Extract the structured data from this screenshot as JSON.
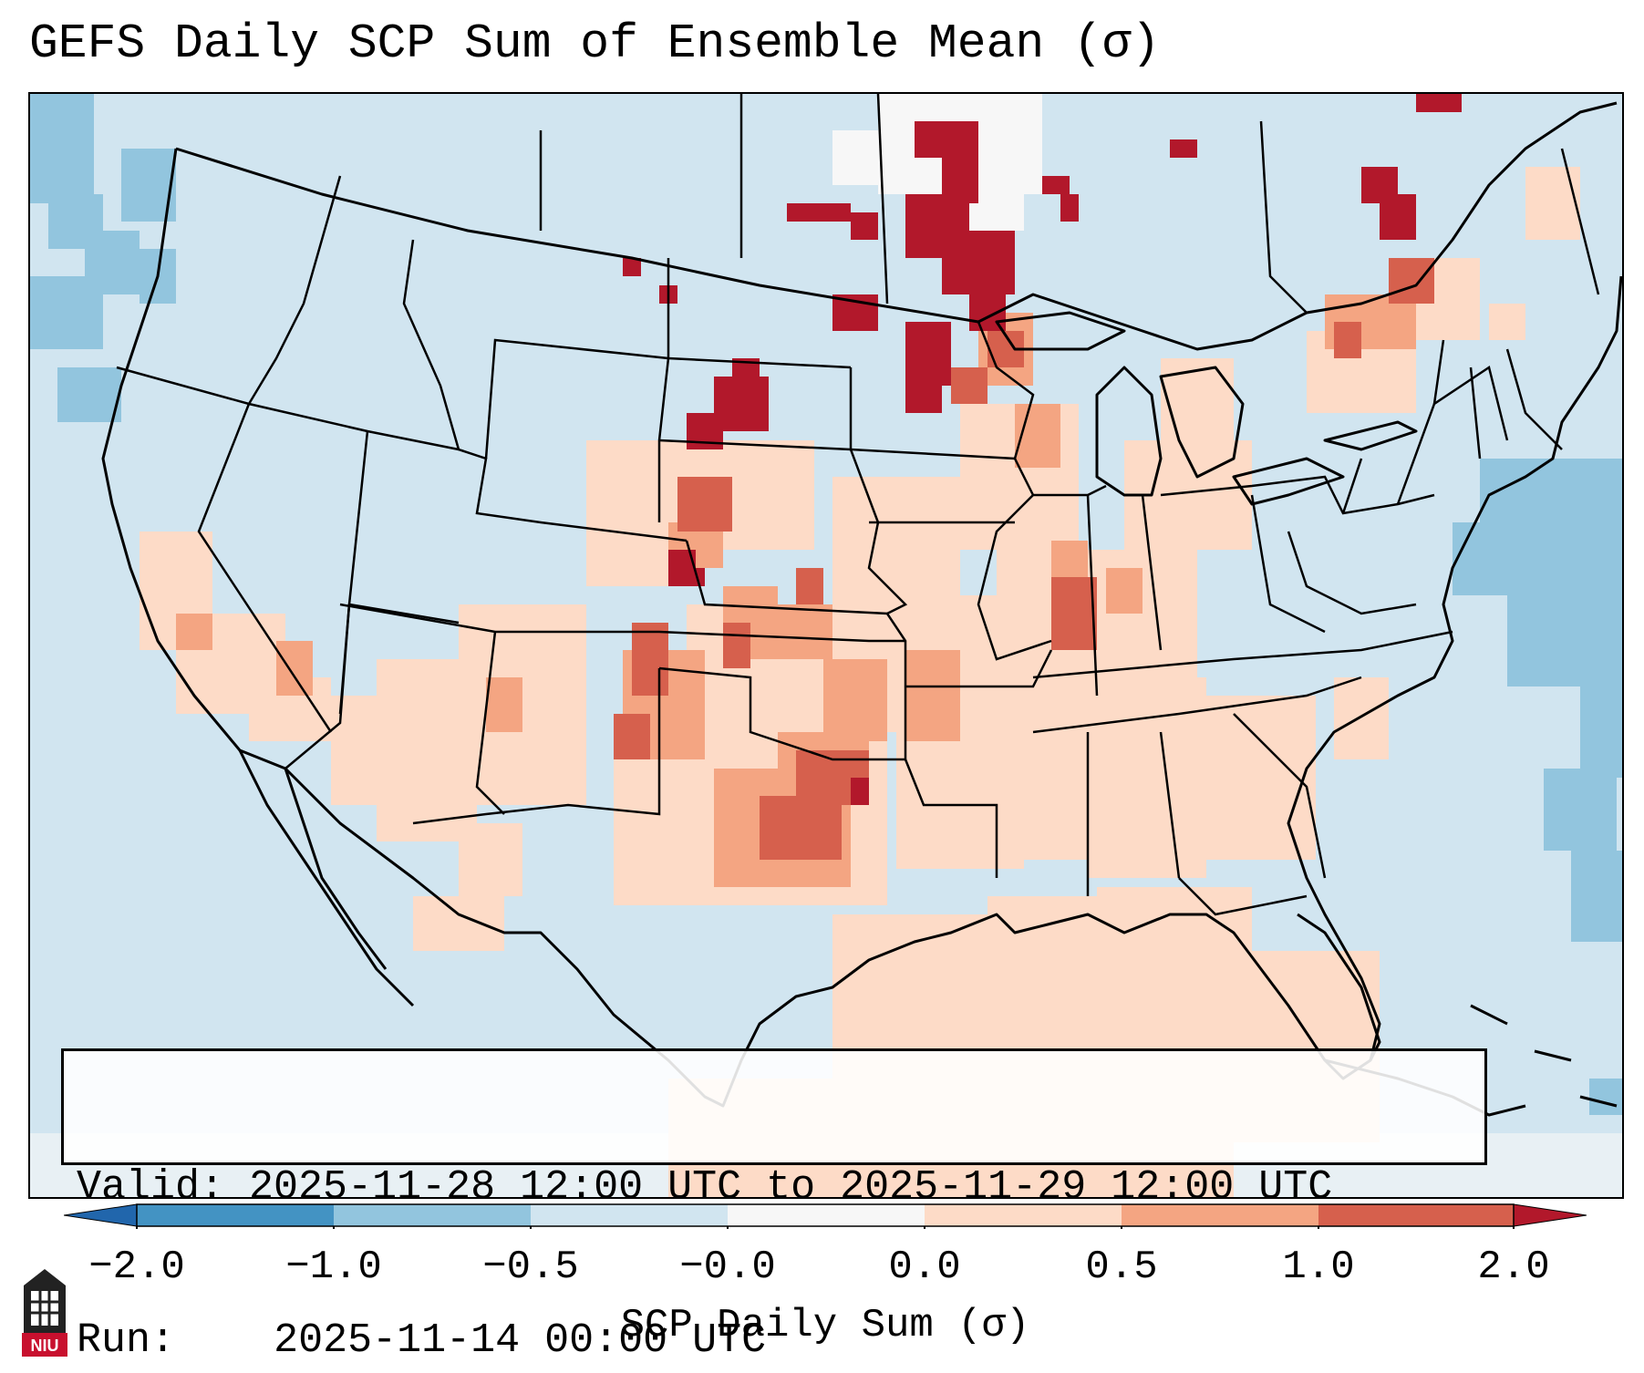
{
  "title": "GEFS Daily SCP Sum of Ensemble Mean (σ)",
  "info": {
    "valid_label": "Valid:",
    "valid_value": "2025-11-28 12:00 UTC to 2025-11-29 12:00 UTC",
    "run_label": "Run:",
    "run_value": "2025-11-14 00:00 UTC"
  },
  "colorbar": {
    "label": "SCP Daily Sum (σ)",
    "ticks": [
      "−2.0",
      "−1.0",
      "−0.5",
      "−0.0",
      "0.0",
      "0.5",
      "1.0",
      "2.0"
    ],
    "colors": {
      "below": "#2166ac",
      "c1": "#4393c3",
      "c2": "#92c5de",
      "c3": "#d1e5f0",
      "c4": "#f7f7f7",
      "c5": "#fddbc7",
      "c6": "#f4a582",
      "c7": "#d6604d",
      "above": "#b2182b"
    }
  },
  "logo": {
    "text": "NIU"
  },
  "map": {
    "region": "Contiguous United States",
    "colors": {
      "background": "#d1e5f0",
      "neutral": "#f7f7f7",
      "low": "#fddbc7",
      "mid": "#f4a582",
      "high": "#d6604d",
      "extreme": "#b2182b",
      "ocean_neg": "#92c5de",
      "outline": "#000000"
    }
  }
}
